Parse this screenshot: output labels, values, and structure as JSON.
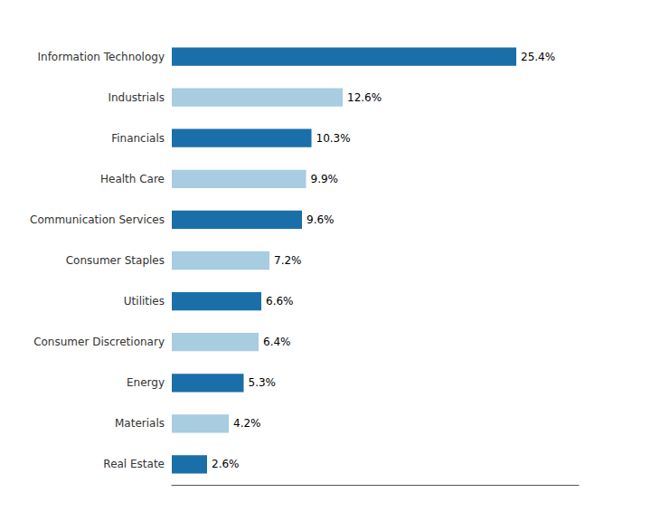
{
  "chart_data": {
    "type": "bar",
    "orientation": "horizontal",
    "categories": [
      "Information Technology",
      "Industrials",
      "Financials",
      "Health Care",
      "Communication Services",
      "Consumer Staples",
      "Utilities",
      "Consumer Discretionary",
      "Energy",
      "Materials",
      "Real Estate"
    ],
    "values": [
      25.4,
      12.6,
      10.3,
      9.9,
      9.6,
      7.2,
      6.6,
      6.4,
      5.3,
      4.2,
      2.6
    ],
    "value_labels": [
      "25.4%",
      "12.6%",
      "10.3%",
      "9.9%",
      "9.6%",
      "7.2%",
      "6.6%",
      "6.4%",
      "5.3%",
      "4.2%",
      "2.6%"
    ],
    "colors": [
      "#1a6fa8",
      "#a8cce0",
      "#1a6fa8",
      "#a8cce0",
      "#1a6fa8",
      "#a8cce0",
      "#1a6fa8",
      "#a8cce0",
      "#1a6fa8",
      "#a8cce0",
      "#1a6fa8"
    ],
    "xlim": [
      0,
      30
    ],
    "grid": false,
    "data_labels": true,
    "tick_labels": "y"
  }
}
